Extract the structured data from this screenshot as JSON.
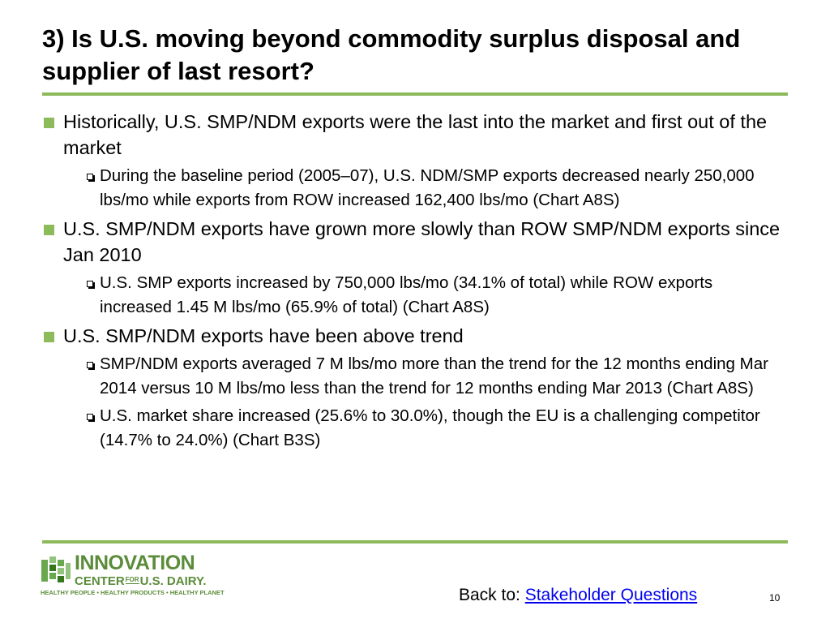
{
  "slide": {
    "title": "3) Is U.S. moving beyond commodity surplus disposal and supplier of last resort?",
    "page_number": "10"
  },
  "bullets": [
    {
      "text": "Historically, U.S. SMP/NDM exports were the last into the market and first out of the market",
      "sub": [
        "During the baseline period (2005–07), U.S. NDM/SMP exports decreased nearly 250,000 lbs/mo while exports from ROW increased 162,400 lbs/mo (Chart A8S)"
      ]
    },
    {
      "text": "U.S. SMP/NDM exports have grown more slowly than ROW SMP/NDM exports since Jan 2010",
      "sub": [
        "U.S. SMP exports increased by 750,000 lbs/mo (34.1% of total) while ROW exports increased 1.45 M lbs/mo (65.9% of total) (Chart A8S)"
      ]
    },
    {
      "text": "U.S. SMP/NDM exports have been above trend",
      "sub": [
        "SMP/NDM exports averaged 7 M lbs/mo more than the trend for the 12 months ending Mar 2014 versus 10 M lbs/mo less than the trend for 12 months ending Mar 2013 (Chart A8S)",
        "U.S. market share increased (25.6% to 30.0%), though the EU is a challenging competitor (14.7% to 24.0%) (Chart B3S)"
      ]
    }
  ],
  "logo": {
    "line1": "INNOVATION",
    "line2_a": "CENTER",
    "line2_for": "FOR",
    "line2_b": "U.S. DAIRY.",
    "tagline": "HEALTHY PEOPLE • HEALTHY PRODUCTS • HEALTHY PLANET"
  },
  "footer": {
    "back_label": "Back to:",
    "link_text": "Stakeholder Questions"
  },
  "colors": {
    "accent_green": "#8dba5b",
    "logo_green": "#5b8c3a",
    "link_blue": "#0000ee"
  }
}
